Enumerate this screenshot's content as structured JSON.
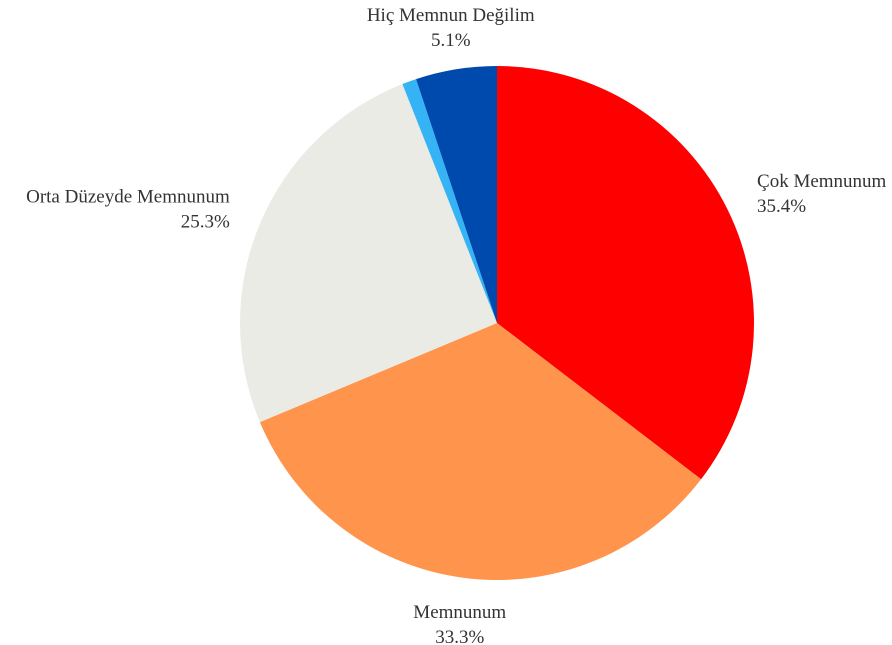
{
  "chart_data": {
    "type": "pie",
    "categories": [
      "Çok Memnunum",
      "Memnunum",
      "Orta Düzeyde Memnunum",
      null,
      "Hiç Memnun Değilim"
    ],
    "values": [
      35.4,
      33.3,
      25.3,
      0.9,
      5.1
    ],
    "value_labels": [
      "35.4%",
      "33.3%",
      "25.3%",
      null,
      "5.1%"
    ],
    "colors": [
      "#ff0000",
      "#ff944d",
      "#ebebe6",
      "#36b3f5",
      "#004aad"
    ]
  }
}
